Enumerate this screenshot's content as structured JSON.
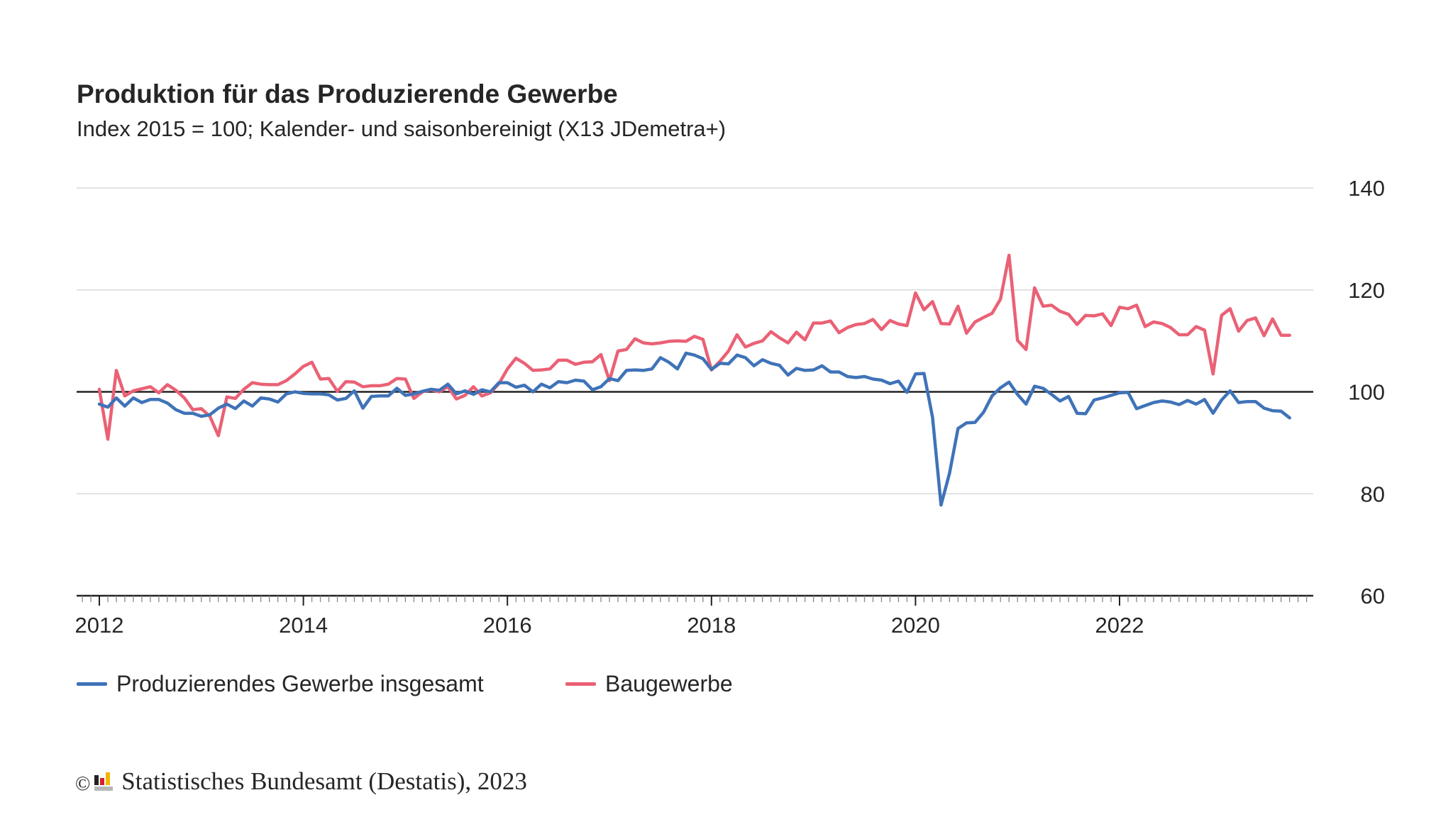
{
  "chart_data": {
    "type": "line",
    "title": "Produktion für das Produzierende Gewerbe",
    "subtitle": "Index 2015 = 100; Kalender- und saisonbereinigt (X13 JDemetra+)",
    "xlabel": "",
    "ylabel": "",
    "ylim": [
      60,
      140
    ],
    "yticks": [
      "60",
      "80",
      "100",
      "120",
      "140"
    ],
    "xticks": [
      "2012",
      "2014",
      "2016",
      "2018",
      "2020",
      "2022"
    ],
    "reference_line": 100,
    "grid": true,
    "legend_position": "bottom-left",
    "x_start": "2012-01",
    "x_frequency": "monthly",
    "series": [
      {
        "name": "Produzierendes Gewerbe insgesamt",
        "color": "#3f73b8",
        "values": [
          97.6,
          97.0,
          98.8,
          97.2,
          98.8,
          97.9,
          98.5,
          98.5,
          97.8,
          96.5,
          95.8,
          95.8,
          95.2,
          95.5,
          96.8,
          97.6,
          96.7,
          98.2,
          97.2,
          98.8,
          98.6,
          98.0,
          99.6,
          100.0,
          99.7,
          99.6,
          99.6,
          99.4,
          98.4,
          98.7,
          100.2,
          96.8,
          99.1,
          99.2,
          99.2,
          100.7,
          99.3,
          99.6,
          100.1,
          100.5,
          100.3,
          101.5,
          99.6,
          100.2,
          99.5,
          100.4,
          100.0,
          101.8,
          101.8,
          100.9,
          101.3,
          100.0,
          101.5,
          100.8,
          102.0,
          101.8,
          102.3,
          102.1,
          100.4,
          101.0,
          102.6,
          102.2,
          104.2,
          104.3,
          104.2,
          104.5,
          106.7,
          105.8,
          104.5,
          107.6,
          107.2,
          106.5,
          104.4,
          105.6,
          105.5,
          107.2,
          106.7,
          105.1,
          106.3,
          105.6,
          105.2,
          103.3,
          104.6,
          104.2,
          104.3,
          105.1,
          103.9,
          103.9,
          103.0,
          102.8,
          103.0,
          102.5,
          102.3,
          101.6,
          102.1,
          99.9,
          103.5,
          103.6,
          95.0,
          77.8,
          84.0,
          92.8,
          93.9,
          94.0,
          96.0,
          99.2,
          100.8,
          101.9,
          99.5,
          97.6,
          101.1,
          100.7,
          99.5,
          98.2,
          99.1,
          95.8,
          95.7,
          98.4,
          98.8,
          99.3,
          99.8,
          99.9,
          96.7,
          97.3,
          97.9,
          98.2,
          98.0,
          97.5,
          98.3,
          97.6,
          98.5,
          95.8,
          98.4,
          100.2,
          97.9,
          98.1,
          98.1,
          96.8,
          96.3,
          96.2,
          94.9
        ]
      },
      {
        "name": "Baugewerbe",
        "color": "#ea6175",
        "values": [
          100.5,
          90.7,
          104.2,
          99.2,
          100.2,
          100.6,
          101.0,
          99.8,
          101.4,
          100.3,
          98.8,
          96.5,
          96.7,
          95.2,
          91.4,
          99.0,
          98.7,
          100.5,
          101.8,
          101.5,
          101.4,
          101.4,
          102.2,
          103.5,
          105.0,
          105.8,
          102.5,
          102.6,
          100.1,
          102.0,
          101.9,
          101.0,
          101.2,
          101.2,
          101.5,
          102.6,
          102.5,
          98.7,
          100.0,
          100.4,
          100.0,
          101.0,
          98.6,
          99.3,
          101.0,
          99.2,
          99.8,
          101.6,
          104.5,
          106.6,
          105.6,
          104.2,
          104.3,
          104.5,
          106.2,
          106.2,
          105.4,
          105.8,
          105.9,
          107.3,
          102.2,
          108.0,
          108.3,
          110.4,
          109.6,
          109.4,
          109.6,
          109.9,
          110.0,
          109.9,
          110.9,
          110.3,
          104.3,
          106.0,
          108.0,
          111.2,
          108.8,
          109.5,
          110.0,
          111.8,
          110.6,
          109.6,
          111.7,
          110.2,
          113.5,
          113.5,
          113.9,
          111.6,
          112.6,
          113.2,
          113.4,
          114.2,
          112.2,
          114.0,
          113.3,
          113.0,
          119.4,
          116.1,
          117.7,
          113.4,
          113.3,
          116.8,
          111.5,
          113.7,
          114.6,
          115.4,
          118.2,
          126.8,
          110.1,
          108.3,
          120.4,
          116.8,
          117.0,
          115.8,
          115.2,
          113.2,
          115.0,
          114.9,
          115.3,
          113.0,
          116.6,
          116.3,
          117.0,
          112.8,
          113.7,
          113.4,
          112.6,
          111.2,
          111.2,
          112.8,
          112.1,
          103.5,
          115.0,
          116.3,
          111.9,
          114.0,
          114.5,
          111.0,
          114.3,
          111.1,
          111.1
        ]
      }
    ]
  },
  "footer": {
    "copyright_symbol": "©",
    "source": "Statistisches Bundesamt (Destatis), 2023"
  }
}
